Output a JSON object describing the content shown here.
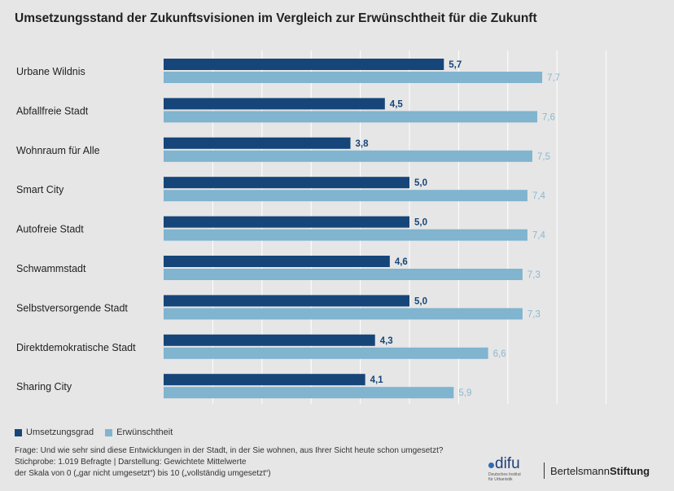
{
  "title": "Umsetzungsstand der Zukunftsvisionen im Vergleich zur Erwünschtheit für die Zukunft",
  "colors": {
    "umsetzung": "#16457a",
    "erwuenscht": "#80b4cf",
    "umsetzung_label": "#16457a",
    "erwuenscht_label": "#8ab8d0",
    "grid": "#ffffff"
  },
  "legend": {
    "series1": "Umsetzungsgrad",
    "series2": "Erwünschtheit"
  },
  "notes": {
    "line1": "Frage: Und wie sehr sind diese Entwicklungen in der Stadt, in der Sie wohnen, aus Ihrer Sicht heute schon umgesetzt?",
    "line2": "Stichprobe: 1.019 Befragte | Darstellung: Gewichtete Mittelwerte",
    "line3": "der Skala von 0 („gar nicht umgesetzt“) bis 10 („vollständig umgesetzt“)"
  },
  "logos": {
    "difu_mark": "difu",
    "difu_sub1": "Deutsches Institut",
    "difu_sub2": "für Urbanistik",
    "bs_regular": "Bertelsmann",
    "bs_bold": "Stiftung"
  },
  "chart_data": {
    "type": "bar",
    "orientation": "horizontal",
    "title": "Umsetzungsstand der Zukunftsvisionen im Vergleich zur Erwünschtheit für die Zukunft",
    "xlim": [
      0,
      10
    ],
    "grid": true,
    "legend_position": "bottom-left",
    "categories": [
      "Urbane Wildnis",
      "Abfallfreie Stadt",
      "Wohnraum für Alle",
      "Smart City",
      "Autofreie Stadt",
      "Schwammstadt",
      "Selbstversorgende Stadt",
      "Direktdemokratische Stadt",
      "Sharing City"
    ],
    "series": [
      {
        "name": "Umsetzungsgrad",
        "values": [
          5.7,
          4.5,
          3.8,
          5.0,
          5.0,
          4.6,
          5.0,
          4.3,
          4.1
        ],
        "labels": [
          "5,7",
          "4,5",
          "3,8",
          "5,0",
          "5,0",
          "4,6",
          "5,0",
          "4,3",
          "4,1"
        ]
      },
      {
        "name": "Erwünschtheit",
        "values": [
          7.7,
          7.6,
          7.5,
          7.4,
          7.4,
          7.3,
          7.3,
          6.6,
          5.9
        ],
        "labels": [
          "7,7",
          "7,6",
          "7,5",
          "7,4",
          "7,4",
          "7,3",
          "7,3",
          "6,6",
          "5,9"
        ]
      }
    ]
  }
}
